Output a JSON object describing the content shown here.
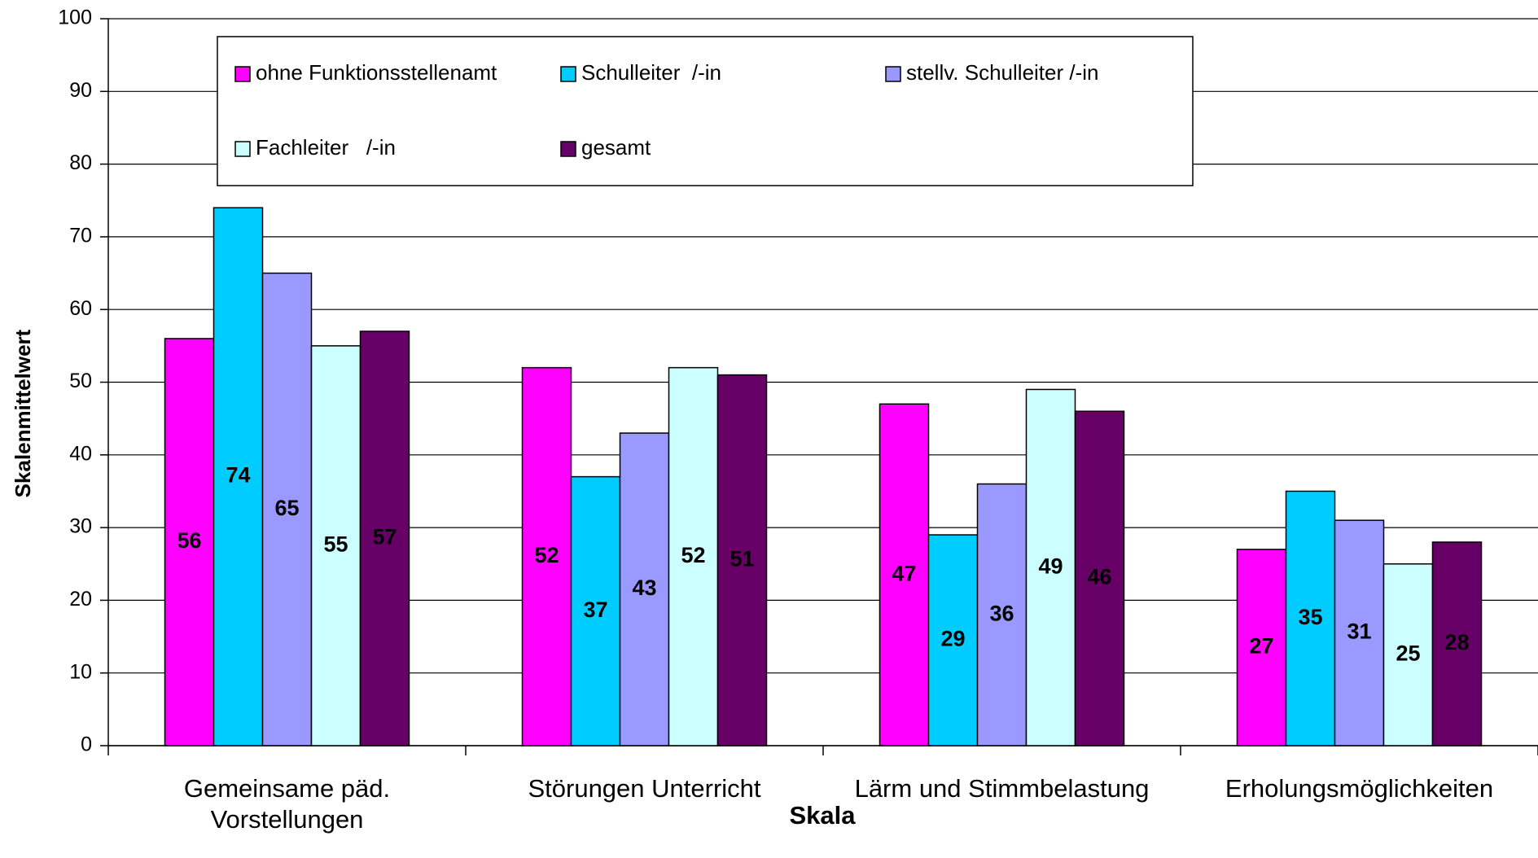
{
  "chart_data": {
    "type": "bar",
    "categories": [
      "Gemeinsame päd. Vorstellungen",
      "Störungen Unterricht",
      "Lärm und Stimmbelastung",
      "Erholungsmöglichkeiten"
    ],
    "series": [
      {
        "name": "ohne Funktionsstellenamt",
        "color": "#FF00FF",
        "values": [
          56,
          52,
          47,
          27
        ]
      },
      {
        "name": "Schulleiter  /-in",
        "color": "#00CCFF",
        "values": [
          74,
          37,
          29,
          35
        ]
      },
      {
        "name": "stellv. Schulleiter /-in",
        "color": "#9999FF",
        "values": [
          65,
          43,
          36,
          31
        ]
      },
      {
        "name": "Fachleiter   /-in",
        "color": "#CCFFFF",
        "values": [
          55,
          52,
          49,
          25
        ]
      },
      {
        "name": "gesamt",
        "color": "#660066",
        "values": [
          57,
          51,
          46,
          28
        ]
      }
    ],
    "x_label": "Skala",
    "y_label": "Skalenmittelwert",
    "ylim": [
      0,
      100
    ],
    "yticks": [
      0,
      10,
      20,
      30,
      40,
      50,
      60,
      70,
      80,
      90,
      100
    ],
    "grid": true,
    "legend": "top"
  }
}
